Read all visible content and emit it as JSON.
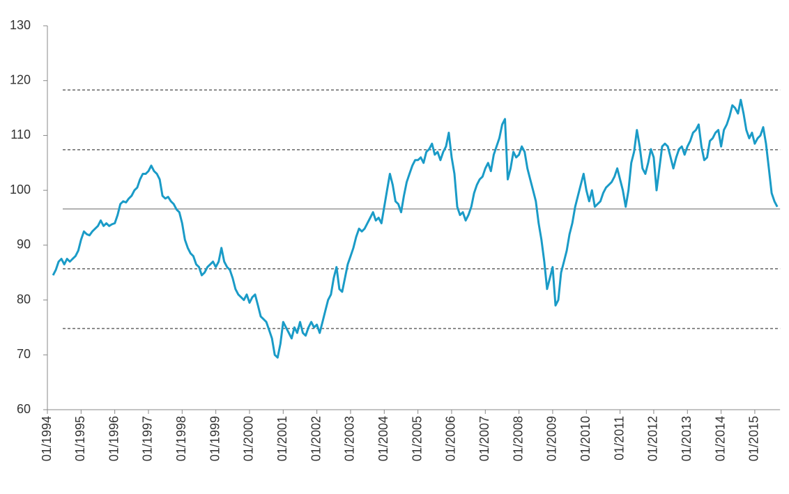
{
  "chart_data": {
    "type": "line",
    "x": [
      "03/1994",
      "04/1994",
      "05/1994",
      "06/1994",
      "07/1994",
      "08/1994",
      "09/1994",
      "10/1994",
      "11/1994",
      "12/1994",
      "01/1995",
      "02/1995",
      "03/1995",
      "04/1995",
      "05/1995",
      "06/1995",
      "07/1995",
      "08/1995",
      "09/1995",
      "10/1995",
      "11/1995",
      "12/1995",
      "01/1996",
      "02/1996",
      "03/1996",
      "04/1996",
      "05/1996",
      "06/1996",
      "07/1996",
      "08/1996",
      "09/1996",
      "10/1996",
      "11/1996",
      "12/1996",
      "01/1997",
      "02/1997",
      "03/1997",
      "04/1997",
      "05/1997",
      "06/1997",
      "07/1997",
      "08/1997",
      "09/1997",
      "10/1997",
      "11/1997",
      "12/1997",
      "01/1998",
      "02/1998",
      "03/1998",
      "04/1998",
      "05/1998",
      "06/1998",
      "07/1998",
      "08/1998",
      "09/1998",
      "10/1998",
      "11/1998",
      "12/1998",
      "01/1999",
      "02/1999",
      "03/1999",
      "04/1999",
      "05/1999",
      "06/1999",
      "07/1999",
      "08/1999",
      "09/1999",
      "10/1999",
      "11/1999",
      "12/1999",
      "01/2000",
      "02/2000",
      "03/2000",
      "04/2000",
      "05/2000",
      "06/2000",
      "07/2000",
      "08/2000",
      "09/2000",
      "10/2000",
      "11/2000",
      "12/2000",
      "01/2001",
      "02/2001",
      "03/2001",
      "04/2001",
      "05/2001",
      "06/2001",
      "07/2001",
      "08/2001",
      "09/2001",
      "10/2001",
      "11/2001",
      "12/2001",
      "01/2002",
      "02/2002",
      "03/2002",
      "04/2002",
      "05/2002",
      "06/2002",
      "07/2002",
      "08/2002",
      "09/2002",
      "10/2002",
      "11/2002",
      "12/2002",
      "01/2003",
      "02/2003",
      "03/2003",
      "04/2003",
      "05/2003",
      "06/2003",
      "07/2003",
      "08/2003",
      "09/2003",
      "10/2003",
      "11/2003",
      "12/2003",
      "01/2004",
      "02/2004",
      "03/2004",
      "04/2004",
      "05/2004",
      "06/2004",
      "07/2004",
      "08/2004",
      "09/2004",
      "10/2004",
      "11/2004",
      "12/2004",
      "01/2005",
      "02/2005",
      "03/2005",
      "04/2005",
      "05/2005",
      "06/2005",
      "07/2005",
      "08/2005",
      "09/2005",
      "10/2005",
      "11/2005",
      "12/2005",
      "01/2006",
      "02/2006",
      "03/2006",
      "04/2006",
      "05/2006",
      "06/2006",
      "07/2006",
      "08/2006",
      "09/2006",
      "10/2006",
      "11/2006",
      "12/2006",
      "01/2007",
      "02/2007",
      "03/2007",
      "04/2007",
      "05/2007",
      "06/2007",
      "07/2007",
      "08/2007",
      "09/2007",
      "10/2007",
      "11/2007",
      "12/2007",
      "01/2008",
      "02/2008",
      "03/2008",
      "04/2008",
      "05/2008",
      "06/2008",
      "07/2008",
      "08/2008",
      "09/2008",
      "10/2008",
      "11/2008",
      "12/2008",
      "01/2009",
      "02/2009",
      "03/2009",
      "04/2009",
      "05/2009",
      "06/2009",
      "07/2009",
      "08/2009",
      "09/2009",
      "10/2009",
      "11/2009",
      "12/2009",
      "01/2010",
      "02/2010",
      "03/2010",
      "04/2010",
      "05/2010",
      "06/2010",
      "07/2010",
      "08/2010",
      "09/2010",
      "10/2010",
      "11/2010",
      "12/2010",
      "01/2011",
      "02/2011",
      "03/2011",
      "04/2011",
      "05/2011",
      "06/2011",
      "07/2011",
      "08/2011",
      "09/2011",
      "10/2011",
      "11/2011",
      "12/2011",
      "01/2012",
      "02/2012",
      "03/2012",
      "04/2012",
      "05/2012",
      "06/2012",
      "07/2012",
      "08/2012",
      "09/2012",
      "10/2012",
      "11/2012",
      "12/2012",
      "01/2013",
      "02/2013",
      "03/2013",
      "04/2013",
      "05/2013",
      "06/2013",
      "07/2013",
      "08/2013",
      "09/2013",
      "10/2013",
      "11/2013",
      "12/2013",
      "01/2014",
      "02/2014",
      "03/2014",
      "04/2014",
      "05/2014",
      "06/2014",
      "07/2014",
      "08/2014",
      "09/2014",
      "10/2014",
      "11/2014",
      "12/2014",
      "01/2015",
      "02/2015",
      "03/2015",
      "04/2015",
      "05/2015",
      "06/2015",
      "07/2015",
      "08/2015",
      "09/2015"
    ],
    "series": [
      {
        "color": "#1a9bc7",
        "values": [
          84.5,
          85.5,
          87,
          87.5,
          86.5,
          87.5,
          87,
          87.5,
          88,
          89,
          91,
          92.5,
          92,
          91.8,
          92.5,
          93,
          93.5,
          94.5,
          93.5,
          94,
          93.5,
          93.8,
          94,
          95.5,
          97.5,
          98,
          97.8,
          98.5,
          99,
          100,
          100.5,
          102,
          103,
          103,
          103.5,
          104.5,
          103.5,
          103,
          102,
          99,
          98.5,
          98.8,
          98,
          97.5,
          96.5,
          96,
          94,
          91,
          89.5,
          88.5,
          88,
          86.5,
          86,
          84.5,
          85,
          86,
          86.5,
          87,
          86,
          87,
          89.5,
          87,
          86,
          85.5,
          84,
          82,
          81,
          80.5,
          80,
          81,
          79.5,
          80.5,
          81,
          79,
          77,
          76.5,
          76,
          74.5,
          73,
          70,
          69.5,
          72,
          76,
          75,
          74,
          73,
          75,
          74,
          76,
          74,
          73.5,
          75,
          76,
          75,
          75.5,
          74,
          76,
          78,
          80,
          81,
          84,
          86,
          82,
          81.5,
          84,
          86.5,
          88,
          89.5,
          91.5,
          93,
          92.5,
          93,
          94,
          95,
          96,
          94.5,
          95,
          94,
          97,
          100,
          103,
          101,
          98,
          97.5,
          96,
          99,
          101.5,
          103,
          104.5,
          105.5,
          105.5,
          106,
          105,
          107,
          107.5,
          108.5,
          106.5,
          107,
          105.5,
          107,
          108,
          110.5,
          106,
          103,
          97,
          95.5,
          96,
          94.5,
          95.5,
          97,
          99.5,
          101,
          102,
          102.5,
          104,
          105,
          103.5,
          106.5,
          108,
          109.5,
          112,
          113,
          102,
          104,
          107,
          106,
          106.5,
          108,
          107,
          104,
          102,
          100,
          98,
          94,
          91,
          87,
          82,
          84,
          86,
          79,
          80,
          85,
          87,
          89,
          92,
          94,
          97,
          99,
          101,
          103,
          100,
          98,
          100,
          97,
          97.5,
          98,
          99.5,
          100.5,
          101,
          101.5,
          102.5,
          104,
          102,
          100,
          97,
          100,
          105,
          107,
          111,
          108,
          104,
          103,
          105,
          107.5,
          106,
          100,
          104,
          108,
          108.5,
          108,
          106,
          104,
          106,
          107.5,
          108,
          106.5,
          108,
          109,
          110.5,
          111,
          112,
          108,
          105.5,
          106,
          109,
          109.5,
          110.5,
          111,
          108,
          111,
          112,
          113.5,
          115.5,
          115,
          114,
          116.5,
          114,
          111,
          109.5,
          110.5,
          108.5,
          109.5,
          110,
          111.5,
          108.5,
          104,
          99.5,
          98,
          97
        ]
      }
    ],
    "reference_lines": [
      {
        "value": 118.3,
        "style": "dashed"
      },
      {
        "value": 107.4,
        "style": "dashed"
      },
      {
        "value": 96.6,
        "style": "solid"
      },
      {
        "value": 85.7,
        "style": "dashed"
      },
      {
        "value": 74.8,
        "style": "dashed"
      }
    ],
    "xlim": [
      "01/1994",
      "10/2015"
    ],
    "xticks": [
      "01/1994",
      "01/1995",
      "01/1996",
      "01/1997",
      "01/1998",
      "01/1999",
      "01/2000",
      "01/2001",
      "01/2002",
      "01/2003",
      "01/2004",
      "01/2005",
      "01/2006",
      "01/2007",
      "01/2008",
      "01/2009",
      "01/2010",
      "01/2011",
      "01/2012",
      "01/2013",
      "01/2014",
      "01/2015"
    ],
    "ylim": [
      60,
      130
    ],
    "yticks": [
      60,
      70,
      80,
      90,
      100,
      110,
      120,
      130
    ]
  }
}
